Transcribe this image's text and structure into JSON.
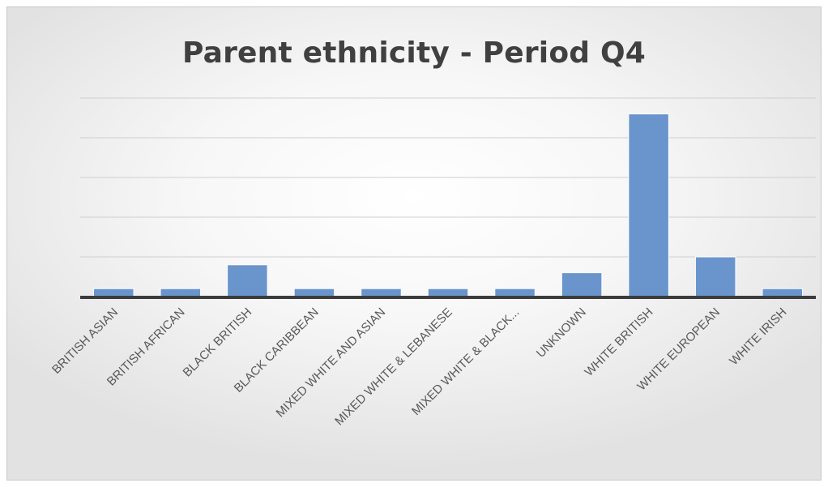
{
  "chart_data": {
    "type": "bar",
    "title": "Parent ethnicity - Period Q4",
    "categories": [
      "BRITISH ASIAN",
      "BRITISH AFRICAN",
      "BLACK BRITISH",
      "BLACK CARIBBEAN",
      "MIXED WHITE AND ASIAN",
      "MIXED WHITE & LEBANESE",
      "MIXED WHITE & BLACK...",
      "UNKNOWN",
      "WHITE BRITISH",
      "WHITE EUROPEAN",
      "WHITE IRISH"
    ],
    "values": [
      1,
      1,
      4,
      1,
      1,
      1,
      1,
      3,
      23,
      5,
      1
    ],
    "ylim": [
      0,
      25
    ],
    "y_gridlines": [
      5,
      10,
      15,
      20,
      25
    ],
    "y_tick_labels_shown": false,
    "grid": true,
    "bar_color": "#6a95cc",
    "xlabel": "",
    "ylabel": ""
  }
}
